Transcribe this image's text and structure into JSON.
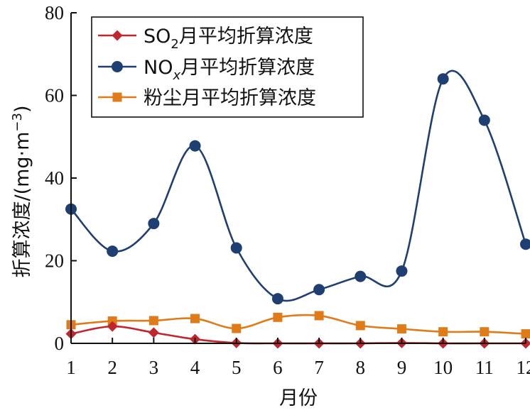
{
  "chart_data": {
    "type": "line",
    "xlabel": "月份",
    "ylabel_prefix": "折算浓度/(mg·m",
    "ylabel_sup": "−3",
    "ylabel_suffix": ")",
    "x": [
      1,
      2,
      3,
      4,
      5,
      6,
      7,
      8,
      9,
      10,
      11,
      12
    ],
    "xlim": [
      1,
      12
    ],
    "ylim": [
      0,
      80
    ],
    "yticks": [
      0,
      20,
      40,
      60,
      80
    ],
    "grid": false,
    "legend_position": "top-left",
    "series": [
      {
        "name": "SO2月平均折算浓度",
        "name_parts": [
          "SO",
          "2",
          "月平均折算浓度"
        ],
        "marker": "diamond",
        "color": "#c0262d",
        "values": [
          2.3,
          4.1,
          2.6,
          1.0,
          0.1,
          0.0,
          0.0,
          0.0,
          0.1,
          0.0,
          0.0,
          0.0
        ]
      },
      {
        "name": "NOx月平均折算浓度",
        "name_parts": [
          "NO",
          "x",
          "月平均折算浓度"
        ],
        "marker": "circle",
        "color": "#1f3f73",
        "values": [
          32.5,
          22.3,
          29.0,
          47.8,
          23.1,
          10.8,
          13.0,
          16.2,
          17.5,
          64.0,
          54.0,
          24.0
        ]
      },
      {
        "name": "粉尘月平均折算浓度",
        "name_parts": [
          "粉尘月平均折算浓度"
        ],
        "marker": "square",
        "color": "#e07b1a",
        "values": [
          4.5,
          5.4,
          5.5,
          6.0,
          3.6,
          6.3,
          6.7,
          4.3,
          3.5,
          2.8,
          2.8,
          2.3
        ]
      }
    ]
  }
}
